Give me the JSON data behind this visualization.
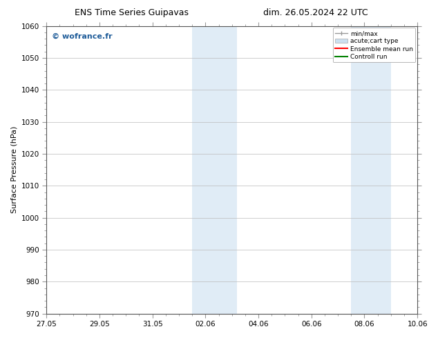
{
  "title_left": "ENS Time Series Guipavas",
  "title_right": "dim. 26.05.2024 22 UTC",
  "ylabel": "Surface Pressure (hPa)",
  "ylim": [
    970,
    1060
  ],
  "yticks": [
    970,
    980,
    990,
    1000,
    1010,
    1020,
    1030,
    1040,
    1050,
    1060
  ],
  "xlim_start": 0,
  "xlim_end": 14,
  "xtick_positions": [
    0,
    2,
    4,
    6,
    8,
    10,
    12,
    14
  ],
  "xtick_labels": [
    "27.05",
    "29.05",
    "31.05",
    "02.06",
    "04.06",
    "06.06",
    "08.06",
    "10.06"
  ],
  "shaded_regions": [
    {
      "x_start": 5.5,
      "x_end": 6.2,
      "color": "#ddeef8"
    },
    {
      "x_start": 6.2,
      "x_end": 7.2,
      "color": "#ddeef8"
    },
    {
      "x_start": 11.5,
      "x_end": 12.2,
      "color": "#ddeef8"
    },
    {
      "x_start": 12.2,
      "x_end": 13.0,
      "color": "#ddeef8"
    }
  ],
  "watermark": "© wofrance.fr",
  "watermark_color": "#1f5c99",
  "background_color": "#ffffff",
  "plot_bg_color": "#ffffff",
  "grid_color": "#bbbbbb",
  "legend_labels": [
    "min/max",
    "acute;cart type",
    "Ensemble mean run",
    "Controll run"
  ],
  "legend_colors": [
    "#999999",
    "#cce0f0",
    "#ff0000",
    "#008000"
  ],
  "title_fontsize": 9,
  "axis_label_fontsize": 8,
  "tick_fontsize": 7.5
}
